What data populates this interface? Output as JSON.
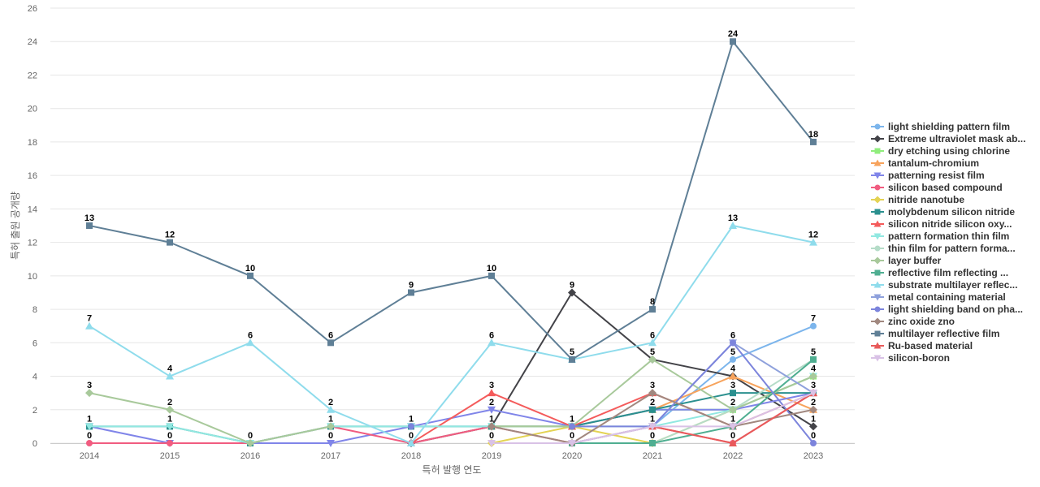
{
  "chart_data": {
    "type": "line",
    "title": "",
    "xlabel": "특허 발행 연도",
    "ylabel": "특허 출원 공개량",
    "x": [
      "2014",
      "2015",
      "2016",
      "2017",
      "2018",
      "2019",
      "2020",
      "2021",
      "2022",
      "2023"
    ],
    "ylim": [
      0,
      26
    ],
    "yticks": [
      0,
      2,
      4,
      6,
      8,
      10,
      12,
      14,
      16,
      18,
      20,
      22,
      24,
      26
    ],
    "grid": true,
    "legend_position": "right",
    "series": [
      {
        "name": "light shielding pattern film",
        "color": "#7cb5ec",
        "marker": "circle",
        "values": [
          null,
          null,
          null,
          null,
          null,
          null,
          null,
          1,
          5,
          7
        ]
      },
      {
        "name": "Extreme ultraviolet mask ab...",
        "color": "#434348",
        "marker": "diamond",
        "values": [
          null,
          null,
          null,
          null,
          0,
          1,
          9,
          5,
          4,
          1
        ]
      },
      {
        "name": "dry etching using chlorine",
        "color": "#90ed7d",
        "marker": "square",
        "values": [
          null,
          null,
          null,
          null,
          null,
          1,
          1,
          2,
          2,
          4
        ]
      },
      {
        "name": "tantalum-chromium",
        "color": "#f7a35c",
        "marker": "triangle",
        "values": [
          null,
          null,
          null,
          null,
          null,
          1,
          1,
          2,
          4,
          2
        ]
      },
      {
        "name": "patterning resist film",
        "color": "#8085e9",
        "marker": "triangle-down",
        "values": [
          1,
          0,
          0,
          0,
          1,
          2,
          1,
          2,
          2,
          3
        ]
      },
      {
        "name": "silicon based compound",
        "color": "#f15c80",
        "marker": "circle",
        "values": [
          0,
          0,
          0,
          1,
          0,
          1,
          0,
          1,
          0,
          3
        ]
      },
      {
        "name": "nitride nanotube",
        "color": "#e4d354",
        "marker": "diamond",
        "values": [
          null,
          null,
          null,
          null,
          null,
          0,
          1,
          0,
          2,
          4
        ]
      },
      {
        "name": "molybdenum silicon nitride",
        "color": "#2b908f",
        "marker": "square",
        "values": [
          1,
          1,
          0,
          1,
          1,
          1,
          1,
          2,
          3,
          3
        ]
      },
      {
        "name": "silicon nitride silicon oxy...",
        "color": "#f45b5b",
        "marker": "triangle",
        "values": [
          null,
          null,
          null,
          null,
          0,
          3,
          1,
          3,
          1,
          3
        ]
      },
      {
        "name": "pattern formation thin film",
        "color": "#91e8e1",
        "marker": "triangle-down",
        "values": [
          1,
          1,
          0,
          1,
          1,
          1,
          1,
          1,
          2,
          4
        ]
      },
      {
        "name": "thin film for pattern forma...",
        "color": "#b5dcc8",
        "marker": "circle",
        "values": [
          null,
          null,
          null,
          null,
          null,
          null,
          0,
          0,
          2,
          5
        ]
      },
      {
        "name": "layer buffer",
        "color": "#a8c99b",
        "marker": "diamond",
        "values": [
          3,
          2,
          0,
          1,
          null,
          1,
          1,
          5,
          2,
          4
        ]
      },
      {
        "name": "reflective film reflecting ...",
        "color": "#4fae91",
        "marker": "square",
        "values": [
          null,
          null,
          null,
          null,
          null,
          null,
          0,
          0,
          1,
          5
        ]
      },
      {
        "name": "substrate multilayer reflec...",
        "color": "#8fdcec",
        "marker": "triangle",
        "values": [
          7,
          4,
          6,
          2,
          0,
          6,
          5,
          6,
          13,
          12
        ]
      },
      {
        "name": "metal containing material",
        "color": "#8fa1dc",
        "marker": "triangle-down",
        "values": [
          null,
          null,
          null,
          null,
          null,
          null,
          0,
          1,
          6,
          3
        ]
      },
      {
        "name": "light shielding band on pha...",
        "color": "#7c84dc",
        "marker": "circle",
        "values": [
          null,
          null,
          null,
          null,
          1,
          null,
          1,
          1,
          6,
          0
        ]
      },
      {
        "name": "zinc oxide zno",
        "color": "#a1887f",
        "marker": "diamond",
        "values": [
          null,
          null,
          null,
          null,
          null,
          1,
          0,
          3,
          1,
          2
        ]
      },
      {
        "name": "multilayer reflective film",
        "color": "#5f7f96",
        "marker": "square",
        "values": [
          13,
          12,
          10,
          6,
          9,
          10,
          5,
          8,
          24,
          18
        ]
      },
      {
        "name": "Ru-based material",
        "color": "#e85a5a",
        "marker": "triangle",
        "values": [
          null,
          null,
          null,
          null,
          null,
          null,
          null,
          1,
          0,
          3
        ]
      },
      {
        "name": "silicon-boron",
        "color": "#d9c2e6",
        "marker": "triangle-down",
        "values": [
          null,
          null,
          null,
          null,
          null,
          0,
          0,
          1,
          1,
          3
        ]
      }
    ],
    "data_labels": [
      {
        "x": "2014",
        "values": [
          13,
          7,
          3,
          1,
          0
        ]
      },
      {
        "x": "2015",
        "values": [
          12,
          4,
          2,
          1,
          0
        ]
      },
      {
        "x": "2016",
        "values": [
          10,
          6,
          0
        ]
      },
      {
        "x": "2017",
        "values": [
          6,
          2,
          1,
          0
        ]
      },
      {
        "x": "2018",
        "values": [
          9,
          1,
          0
        ]
      },
      {
        "x": "2019",
        "values": [
          10,
          6,
          3,
          2,
          1,
          0
        ]
      },
      {
        "x": "2020",
        "values": [
          9,
          5,
          1,
          0
        ]
      },
      {
        "x": "2021",
        "values": [
          8,
          6,
          5,
          3,
          2,
          1,
          0
        ]
      },
      {
        "x": "2022",
        "values": [
          24,
          13,
          6,
          5,
          4,
          3,
          2,
          1,
          0
        ]
      },
      {
        "x": "2023",
        "values": [
          18,
          12,
          7,
          5,
          4,
          3,
          2,
          1,
          0
        ]
      }
    ]
  }
}
